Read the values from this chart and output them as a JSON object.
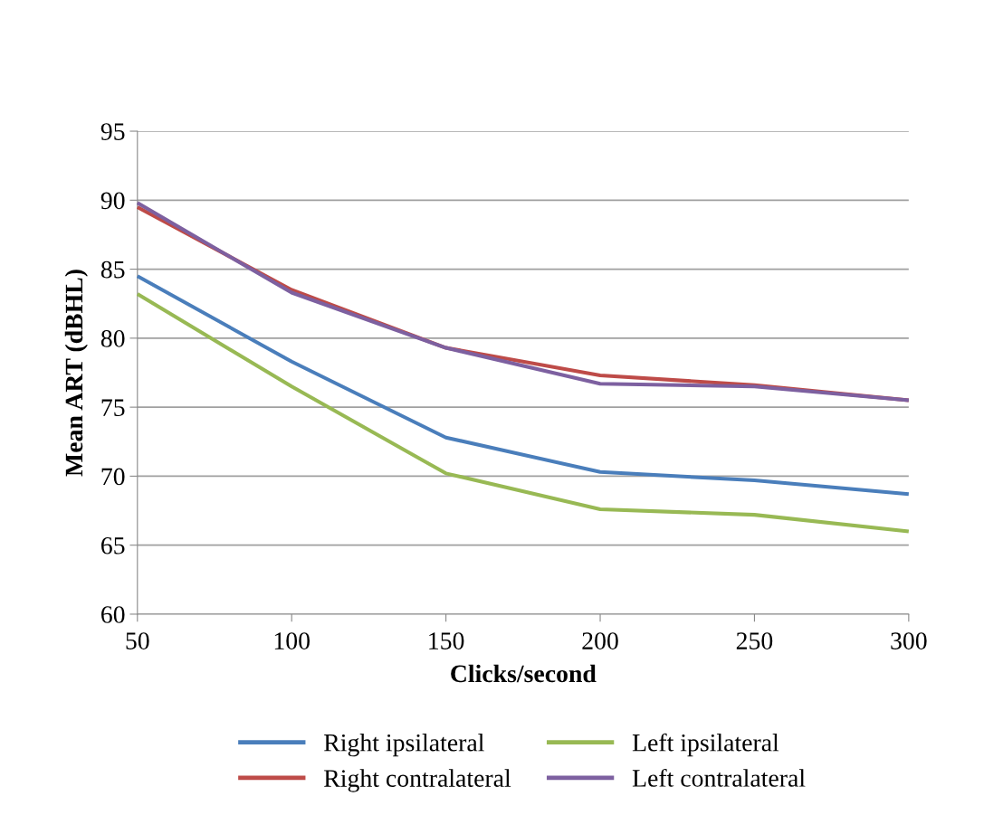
{
  "chart_data": {
    "type": "line",
    "xlabel": "Clicks/second",
    "ylabel": "Mean ART (dBHL)",
    "x": [
      50,
      100,
      150,
      200,
      250,
      300
    ],
    "series": [
      {
        "name": "Right ipsilateral",
        "color": "#4a7ebb",
        "values": [
          84.5,
          78.3,
          72.8,
          70.3,
          69.7,
          68.7
        ]
      },
      {
        "name": "Right contralateral",
        "color": "#be4b48",
        "values": [
          89.5,
          83.5,
          79.3,
          77.3,
          76.6,
          75.5
        ]
      },
      {
        "name": "Left ipsilateral",
        "color": "#98b954",
        "values": [
          83.2,
          76.5,
          70.2,
          67.6,
          67.2,
          66.0
        ]
      },
      {
        "name": "Left contralateral",
        "color": "#7d60a0",
        "values": [
          89.8,
          83.3,
          79.3,
          76.7,
          76.5,
          75.5
        ]
      }
    ],
    "xlim": [
      50,
      300
    ],
    "xticks": [
      50,
      100,
      150,
      200,
      250,
      300
    ],
    "ylim": [
      60,
      95
    ],
    "yticks": [
      60,
      65,
      70,
      75,
      80,
      85,
      90,
      95
    ],
    "grid": "y",
    "legend": "bottom",
    "marker": "none",
    "line_style": "solid"
  }
}
